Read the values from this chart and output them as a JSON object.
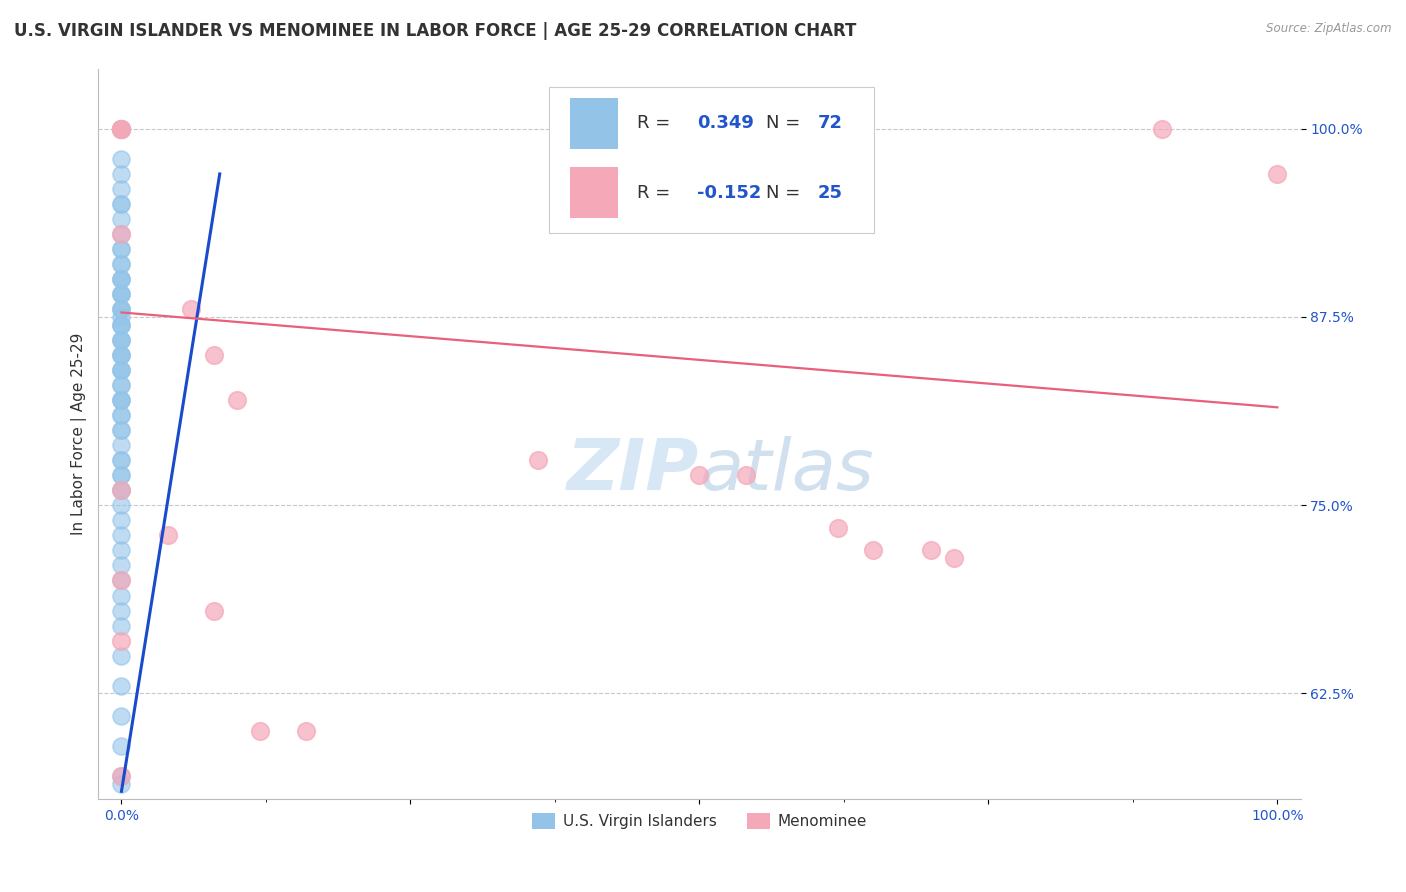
{
  "title": "U.S. VIRGIN ISLANDER VS MENOMINEE IN LABOR FORCE | AGE 25-29 CORRELATION CHART",
  "source": "Source: ZipAtlas.com",
  "ylabel": "In Labor Force | Age 25-29",
  "xlim": [
    -0.02,
    1.02
  ],
  "ylim": [
    0.555,
    1.04
  ],
  "yticks": [
    0.625,
    0.75,
    0.875,
    1.0
  ],
  "yticklabels": [
    "62.5%",
    "75.0%",
    "87.5%",
    "100.0%"
  ],
  "blue_color": "#93c4e8",
  "pink_color": "#f4a8b8",
  "blue_line_color": "#1a4bcc",
  "pink_line_color": "#e8607a",
  "blue_trend_x0": 0.0,
  "blue_trend_y0": 0.56,
  "blue_trend_x1": 0.085,
  "blue_trend_y1": 0.97,
  "pink_trend_x0": 0.0,
  "pink_trend_y0": 0.878,
  "pink_trend_x1": 1.0,
  "pink_trend_y1": 0.815,
  "blue_x": [
    0.0,
    0.0,
    0.0,
    0.0,
    0.0,
    0.0,
    0.0,
    0.0,
    0.0,
    0.0,
    0.0,
    0.0,
    0.0,
    0.0,
    0.0,
    0.0,
    0.0,
    0.0,
    0.0,
    0.0,
    0.0,
    0.0,
    0.0,
    0.0,
    0.0,
    0.0,
    0.0,
    0.0,
    0.0,
    0.0,
    0.0,
    0.0,
    0.0,
    0.0,
    0.0,
    0.0,
    0.0,
    0.0,
    0.0,
    0.0,
    0.0,
    0.0,
    0.0,
    0.0,
    0.0,
    0.0,
    0.0,
    0.0,
    0.0,
    0.0,
    0.0,
    0.0,
    0.0,
    0.0,
    0.0,
    0.0,
    0.0,
    0.0,
    0.0,
    0.0,
    0.0,
    0.0,
    0.0,
    0.0,
    0.0,
    0.0,
    0.0,
    0.0,
    0.0,
    0.0,
    0.0,
    0.0
  ],
  "blue_y": [
    1.0,
    1.0,
    1.0,
    1.0,
    1.0,
    1.0,
    1.0,
    1.0,
    0.98,
    0.97,
    0.96,
    0.95,
    0.95,
    0.94,
    0.93,
    0.92,
    0.92,
    0.91,
    0.91,
    0.9,
    0.9,
    0.9,
    0.89,
    0.89,
    0.89,
    0.88,
    0.88,
    0.88,
    0.875,
    0.87,
    0.87,
    0.87,
    0.86,
    0.86,
    0.86,
    0.85,
    0.85,
    0.85,
    0.84,
    0.84,
    0.84,
    0.83,
    0.83,
    0.82,
    0.82,
    0.82,
    0.81,
    0.81,
    0.8,
    0.8,
    0.79,
    0.78,
    0.78,
    0.77,
    0.77,
    0.76,
    0.76,
    0.75,
    0.74,
    0.73,
    0.72,
    0.71,
    0.7,
    0.69,
    0.68,
    0.67,
    0.65,
    0.63,
    0.61,
    0.59,
    0.57,
    0.565
  ],
  "pink_x": [
    0.0,
    0.0,
    0.0,
    0.0,
    0.0,
    0.06,
    0.08,
    0.1,
    0.36,
    0.5,
    0.54,
    0.62,
    0.65,
    0.7,
    0.72,
    0.9,
    1.0,
    0.0,
    0.04,
    0.0,
    0.08,
    0.0,
    0.12,
    0.16,
    0.0
  ],
  "pink_y": [
    1.0,
    1.0,
    1.0,
    1.0,
    0.93,
    0.88,
    0.85,
    0.82,
    0.78,
    0.77,
    0.77,
    0.735,
    0.72,
    0.72,
    0.715,
    1.0,
    0.97,
    0.76,
    0.73,
    0.7,
    0.68,
    0.66,
    0.6,
    0.6,
    0.57
  ],
  "background_color": "#ffffff",
  "grid_color": "#c8c8c8",
  "title_fontsize": 12,
  "axis_label_fontsize": 11,
  "tick_fontsize": 10,
  "legend_fontsize": 13
}
